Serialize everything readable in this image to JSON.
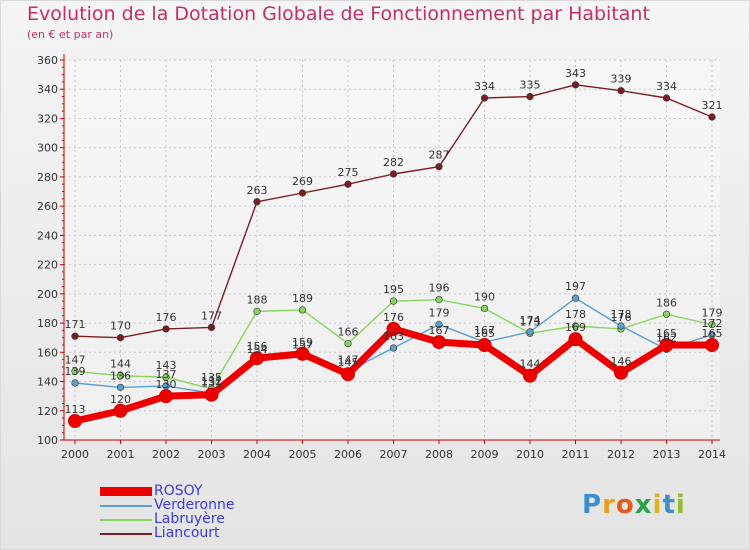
{
  "header": {
    "title": "Evolution de la Dotation Globale de Fonctionnement par Habitant",
    "subtitle": "(en € et par an)"
  },
  "brand": {
    "logo_text": "Proxiti",
    "letter_colors": [
      "#3a8fd1",
      "#e6a11a",
      "#e55a1c",
      "#2ba34a",
      "#e0b31c",
      "#3a8fd1",
      "#8fbf2a"
    ]
  },
  "chart_data": {
    "type": "line",
    "title": "Evolution de la Dotation Globale de Fonctionnement par Habitant",
    "subtitle": "(en € et par an)",
    "xlabel": "",
    "ylabel": "",
    "x": [
      "2000",
      "2001",
      "2002",
      "2003",
      "2004",
      "2005",
      "2006",
      "2007",
      "2008",
      "2009",
      "2010",
      "2011",
      "2012",
      "2013",
      "2014"
    ],
    "ylim": [
      100,
      360
    ],
    "yticks": [
      100,
      120,
      140,
      160,
      180,
      200,
      220,
      240,
      260,
      280,
      300,
      320,
      340,
      360
    ],
    "grid": true,
    "legend_position": "bottom-left",
    "series": [
      {
        "name": "ROSOY",
        "color": "#ee0000",
        "style": "thick",
        "values": [
          113,
          120,
          130,
          131,
          156,
          159,
          145,
          176,
          167,
          165,
          144,
          169,
          146,
          165,
          165
        ],
        "labels": [
          "113",
          "120",
          "130",
          "131",
          "156",
          "159",
          "145",
          "176",
          "167",
          "165",
          "144",
          "169",
          "146",
          "165",
          "165"
        ]
      },
      {
        "name": "Verderonne",
        "color": "#5a9fd4",
        "style": "thin",
        "values": [
          139,
          136,
          137,
          132,
          154,
          157,
          147,
          163,
          179,
          167,
          174,
          197,
          178,
          162,
          172
        ],
        "labels": [
          "139",
          "136",
          "137",
          "132",
          "154",
          "157",
          "147",
          "163",
          "179",
          "167",
          "174",
          "197",
          "178",
          "162",
          "172"
        ]
      },
      {
        "name": "Labruyère",
        "color": "#88d460",
        "style": "thin",
        "values": [
          147,
          144,
          143,
          135,
          188,
          189,
          166,
          195,
          196,
          190,
          173,
          178,
          176,
          186,
          179
        ],
        "labels": [
          "147",
          "144",
          "143",
          "135",
          "188",
          "189",
          "166",
          "195",
          "196",
          "190",
          "173",
          "178",
          "176",
          "186",
          "179"
        ]
      },
      {
        "name": "Liancourt",
        "color": "#7b1e22",
        "style": "thin",
        "values": [
          171,
          170,
          176,
          177,
          263,
          269,
          275,
          282,
          287,
          334,
          335,
          343,
          339,
          334,
          321
        ],
        "labels": [
          "171",
          "170",
          "176",
          "177",
          "263",
          "269",
          "275",
          "282",
          "287",
          "334",
          "335",
          "343",
          "339",
          "334",
          "321"
        ]
      }
    ]
  }
}
